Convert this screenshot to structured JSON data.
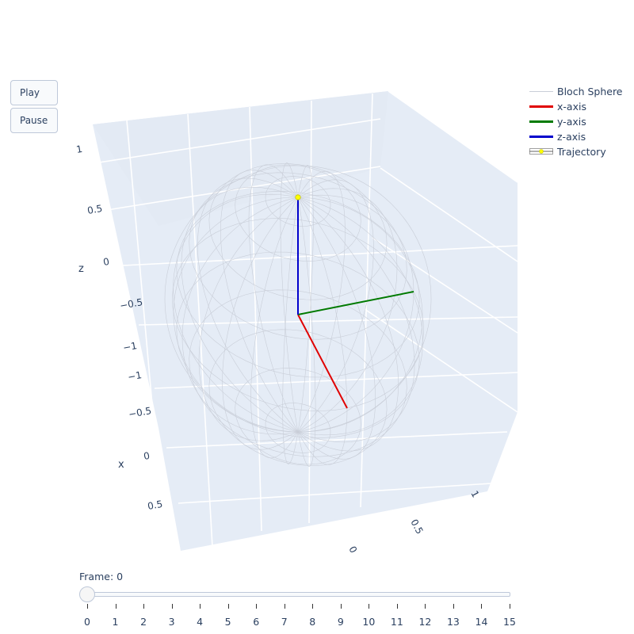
{
  "controls": {
    "play_label": "Play",
    "pause_label": "Pause"
  },
  "legend": {
    "items": [
      {
        "label": "Bloch Sphere",
        "color": "#c9ced8"
      },
      {
        "label": "x-axis",
        "color": "#e00000"
      },
      {
        "label": "y-axis",
        "color": "#007a00"
      },
      {
        "label": "z-axis",
        "color": "#0000cc"
      },
      {
        "label": "Trajectory",
        "color": "#ffff00"
      }
    ]
  },
  "slider": {
    "prefix": "Frame: ",
    "current": "0",
    "min": 0,
    "max": 15,
    "ticks": [
      "0",
      "1",
      "2",
      "3",
      "4",
      "5",
      "6",
      "7",
      "8",
      "9",
      "10",
      "11",
      "12",
      "13",
      "14",
      "15"
    ]
  },
  "chart_data": {
    "type": "scatter3d",
    "title": "",
    "scene_bgcolor": "#e5ecf6",
    "grid": true,
    "legend_position": "top-right",
    "axes": {
      "x": {
        "label": "x",
        "ticks_shown": [
          "−1",
          "−0.5",
          "0",
          "0.5"
        ]
      },
      "y": {
        "label": "",
        "ticks_shown": [
          "0",
          "0.5",
          "1"
        ]
      },
      "z": {
        "label": "z",
        "ticks_shown": [
          "−1",
          "−0.5",
          "0",
          "0.5",
          "1"
        ]
      }
    },
    "series": [
      {
        "name": "Bloch Sphere",
        "kind": "wireframe-sphere",
        "radius": 1,
        "color": "#c9ced8"
      },
      {
        "name": "x-axis",
        "kind": "line",
        "from": [
          0,
          0,
          0
        ],
        "to": [
          1,
          0,
          0
        ],
        "color": "#e00000"
      },
      {
        "name": "y-axis",
        "kind": "line",
        "from": [
          0,
          0,
          0
        ],
        "to": [
          0,
          1,
          0
        ],
        "color": "#007a00"
      },
      {
        "name": "z-axis",
        "kind": "line",
        "from": [
          0,
          0,
          0
        ],
        "to": [
          0,
          0,
          1
        ],
        "color": "#0000cc"
      },
      {
        "name": "Trajectory",
        "kind": "markers",
        "points": [
          [
            0,
            0,
            1
          ]
        ],
        "color": "#ffff00"
      }
    ],
    "current_frame": 0
  }
}
